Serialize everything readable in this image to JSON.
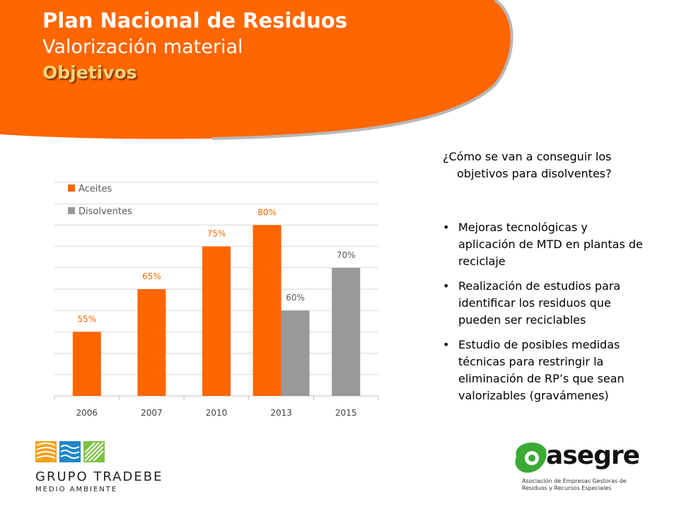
{
  "header": {
    "title": "Plan Nacional de Residuos",
    "subtitle": "Valorización material",
    "section": "Objetivos",
    "colors": {
      "accent": "#ff6600",
      "section_text": "#ffd37a"
    }
  },
  "chart_data": {
    "type": "bar",
    "categories": [
      "2006",
      "2007",
      "2010",
      "2013",
      "2015"
    ],
    "series": [
      {
        "name": "Aceites",
        "values": [
          55,
          65,
          75,
          80,
          null
        ],
        "labels": [
          "55%",
          "65%",
          "75%",
          "80%",
          ""
        ],
        "color": "#ff6600"
      },
      {
        "name": "Disolventes",
        "values": [
          null,
          null,
          null,
          60,
          70
        ],
        "labels": [
          "",
          "",
          "",
          "60%",
          "70%"
        ],
        "color": "#999999"
      }
    ],
    "ylim": [
      40,
      90
    ],
    "grid": true,
    "legend_position": "top-left"
  },
  "right_panel": {
    "question": "¿Cómo se van a conseguir los objetivos para disolventes?",
    "bullets": [
      "Mejoras tecnológicas  y aplicación de MTD en plantas de reciclaje",
      "Realización de estudios para identificar los residuos que pueden ser reciclables",
      "Estudio de posibles medidas técnicas para restringir la eliminación de RP’s que sean valorizables (gravámenes)"
    ]
  },
  "logos": {
    "tradebe_name": "GRUPO TRADEBE",
    "tradebe_sub": "MEDIO AMBIENTE",
    "asegre_name": "asegre",
    "asegre_sub": "Asociación de Empresas Gestoras de Residuos y Recursos Especiales"
  }
}
